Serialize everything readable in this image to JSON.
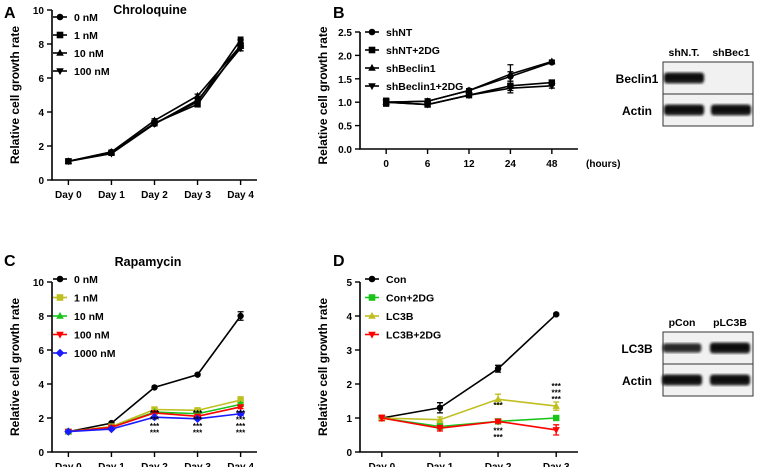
{
  "panels": {
    "A": {
      "letter": "A"
    },
    "B": {
      "letter": "B"
    },
    "C": {
      "letter": "C"
    },
    "D": {
      "letter": "D"
    }
  },
  "chart_data": [
    {
      "id": "A",
      "type": "line",
      "title": "Chroloquine",
      "xlabel": "",
      "ylabel": "Relative cell growth rate",
      "categories": [
        "Day 0",
        "Day 1",
        "Day 2",
        "Day 3",
        "Day 4"
      ],
      "ylim": [
        0,
        10
      ],
      "yticks": [
        0,
        2,
        4,
        6,
        8,
        10
      ],
      "legend_position": "top-left",
      "series": [
        {
          "name": "0 nM",
          "marker": "circle",
          "color": "#000000",
          "values": [
            1.1,
            1.65,
            3.3,
            4.6,
            8.25
          ],
          "errors": [
            0.05,
            0.05,
            0.1,
            0.1,
            0.15
          ]
        },
        {
          "name": "1 nM",
          "marker": "square",
          "color": "#000000",
          "values": [
            1.1,
            1.6,
            3.35,
            4.45,
            7.9
          ],
          "errors": [
            0.05,
            0.05,
            0.1,
            0.1,
            0.15
          ]
        },
        {
          "name": "10 nM",
          "marker": "triangle-up",
          "color": "#000000",
          "values": [
            1.1,
            1.65,
            3.5,
            4.95,
            7.9
          ],
          "errors": [
            0.05,
            0.05,
            0.1,
            0.1,
            0.15
          ]
        },
        {
          "name": "100 nM",
          "marker": "triangle-down",
          "color": "#000000",
          "values": [
            1.1,
            1.55,
            3.3,
            4.7,
            7.75
          ],
          "errors": [
            0.05,
            0.05,
            0.1,
            0.1,
            0.15
          ]
        }
      ]
    },
    {
      "id": "B",
      "type": "line",
      "title": "",
      "xlabel": "(hours)",
      "ylabel": "Relative cell growth rate",
      "categories": [
        "0",
        "6",
        "12",
        "24",
        "48"
      ],
      "ylim": [
        0.0,
        2.5
      ],
      "yticks": [
        0.0,
        0.5,
        1.0,
        1.5,
        2.0,
        2.5
      ],
      "yticklabels": [
        "0.0",
        "0.5",
        "1.0",
        "1.5",
        "2.0",
        "2.5"
      ],
      "legend_position": "top-left",
      "series": [
        {
          "name": "shNT",
          "marker": "circle",
          "color": "#000000",
          "values": [
            1.0,
            1.02,
            1.25,
            1.55,
            1.85
          ],
          "errors": [
            0.08,
            0.05,
            0.04,
            0.1,
            0.03
          ]
        },
        {
          "name": "shNT+2DG",
          "marker": "square",
          "color": "#000000",
          "values": [
            1.0,
            0.95,
            1.15,
            1.35,
            1.42
          ],
          "errors": [
            0.08,
            0.05,
            0.04,
            0.1,
            0.05
          ]
        },
        {
          "name": "shBeclin1",
          "marker": "triangle-up",
          "color": "#000000",
          "values": [
            1.0,
            1.02,
            1.25,
            1.6,
            1.87
          ],
          "errors": [
            0.08,
            0.05,
            0.04,
            0.2,
            0.03
          ]
        },
        {
          "name": "shBeclin1+2DG",
          "marker": "triangle-down",
          "color": "#000000",
          "values": [
            1.0,
            0.95,
            1.15,
            1.3,
            1.35
          ],
          "errors": [
            0.08,
            0.05,
            0.04,
            0.1,
            0.05
          ]
        }
      ]
    },
    {
      "id": "C",
      "type": "line",
      "title": "Rapamycin",
      "xlabel": "",
      "ylabel": "Relative cell growth rate",
      "categories": [
        "Day 0",
        "Day 1",
        "Day 2",
        "Day 3",
        "Day 4"
      ],
      "ylim": [
        0,
        10
      ],
      "yticks": [
        0,
        2,
        4,
        6,
        8,
        10
      ],
      "legend_position": "top-left",
      "series": [
        {
          "name": "0 nM",
          "marker": "circle",
          "color": "#000000",
          "values": [
            1.2,
            1.7,
            3.8,
            4.55,
            8.0
          ],
          "errors": [
            0.05,
            0.05,
            0.05,
            0.05,
            0.25
          ]
        },
        {
          "name": "1 nM",
          "marker": "square",
          "color": "#BFBF1F",
          "values": [
            1.2,
            1.5,
            2.5,
            2.45,
            3.05
          ],
          "errors": [
            0.05,
            0.05,
            0.05,
            0.05,
            0.2
          ]
        },
        {
          "name": "10 nM",
          "marker": "triangle-up",
          "color": "#19C419",
          "values": [
            1.2,
            1.45,
            2.35,
            2.25,
            2.8
          ],
          "errors": [
            0.05,
            0.05,
            0.05,
            0.05,
            0.1
          ]
        },
        {
          "name": "100 nM",
          "marker": "triangle-down",
          "color": "#FF0000",
          "values": [
            1.2,
            1.45,
            2.3,
            2.1,
            2.65
          ],
          "errors": [
            0.05,
            0.05,
            0.05,
            0.05,
            0.1
          ]
        },
        {
          "name": "1000 nM",
          "marker": "diamond",
          "color": "#1A1AFF",
          "values": [
            1.2,
            1.35,
            2.05,
            1.95,
            2.25
          ],
          "errors": [
            0.05,
            0.05,
            0.05,
            0.05,
            0.1
          ]
        }
      ],
      "annotations": [
        {
          "category": "Day 2",
          "lines": [
            {
              "text": "***",
              "color": "#BFBF1F"
            },
            {
              "text": "***",
              "color": "#19C419"
            },
            {
              "text": "***",
              "color": "#FF0000"
            },
            {
              "text": "***",
              "color": "#1A1AFF"
            }
          ]
        },
        {
          "category": "Day 3",
          "lines": [
            {
              "text": "***",
              "color": "#BFBF1F"
            },
            {
              "text": "***",
              "color": "#19C419"
            },
            {
              "text": "***",
              "color": "#FF0000"
            },
            {
              "text": "***",
              "color": "#1A1AFF"
            }
          ]
        },
        {
          "category": "Day 4",
          "lines": [
            {
              "text": "***",
              "color": "#BFBF1F"
            },
            {
              "text": "***",
              "color": "#19C419"
            },
            {
              "text": "***",
              "color": "#FF0000"
            },
            {
              "text": "***",
              "color": "#1A1AFF"
            }
          ]
        }
      ]
    },
    {
      "id": "D",
      "type": "line",
      "title": "",
      "xlabel": "",
      "ylabel": "Relative cell growth rate",
      "categories": [
        "Day 0",
        "Day 1",
        "Day 2",
        "Day 3"
      ],
      "ylim": [
        0,
        5
      ],
      "yticks": [
        0,
        1,
        2,
        3,
        4,
        5
      ],
      "legend_position": "top-left",
      "series": [
        {
          "name": "Con",
          "marker": "circle",
          "color": "#000000",
          "values": [
            1.0,
            1.3,
            2.45,
            4.05
          ],
          "errors": [
            0.08,
            0.15,
            0.1,
            0.03
          ]
        },
        {
          "name": "Con+2DG",
          "marker": "square",
          "color": "#19C419",
          "values": [
            1.0,
            0.75,
            0.9,
            1.0
          ],
          "errors": [
            0.08,
            0.08,
            0.05,
            0.05
          ]
        },
        {
          "name": "LC3B",
          "marker": "triangle-up",
          "color": "#BFBF1F",
          "values": [
            1.0,
            0.95,
            1.55,
            1.35
          ],
          "errors": [
            0.08,
            0.08,
            0.15,
            0.12
          ]
        },
        {
          "name": "LC3B+2DG",
          "marker": "triangle-down",
          "color": "#FF0000",
          "values": [
            1.0,
            0.7,
            0.9,
            0.65
          ],
          "errors": [
            0.08,
            0.08,
            0.05,
            0.15
          ]
        }
      ],
      "annotations": [
        {
          "category": "Day 2",
          "anchor": "below",
          "lines": [
            {
              "text": "***",
              "color": "#19C419"
            },
            {
              "text": "***",
              "color": "#FF0000"
            }
          ]
        },
        {
          "category": "Day 3",
          "anchor": "above",
          "lines": [
            {
              "text": "***",
              "color": "#BFBF1F"
            },
            {
              "text": "***",
              "color": "#19C419"
            },
            {
              "text": "***",
              "color": "#FF0000"
            }
          ]
        },
        {
          "category": "Day 2",
          "anchor": "mid",
          "lines": [
            {
              "text": "***",
              "color": "#BFBF1F"
            }
          ]
        }
      ]
    }
  ],
  "blots": [
    {
      "id": "blot-beclin",
      "lanes": [
        "shN.T.",
        "shBec1"
      ],
      "rows": [
        {
          "label": "Beclin1",
          "intensity": [
            1,
            0
          ]
        },
        {
          "label": "Actin",
          "intensity": [
            1,
            1
          ]
        }
      ]
    },
    {
      "id": "blot-lc3b",
      "lanes": [
        "pCon",
        "pLC3B"
      ],
      "rows": [
        {
          "label": "LC3B",
          "intensity": [
            0.75,
            1
          ]
        },
        {
          "label": "Actin",
          "intensity": [
            1,
            1
          ]
        }
      ]
    }
  ]
}
